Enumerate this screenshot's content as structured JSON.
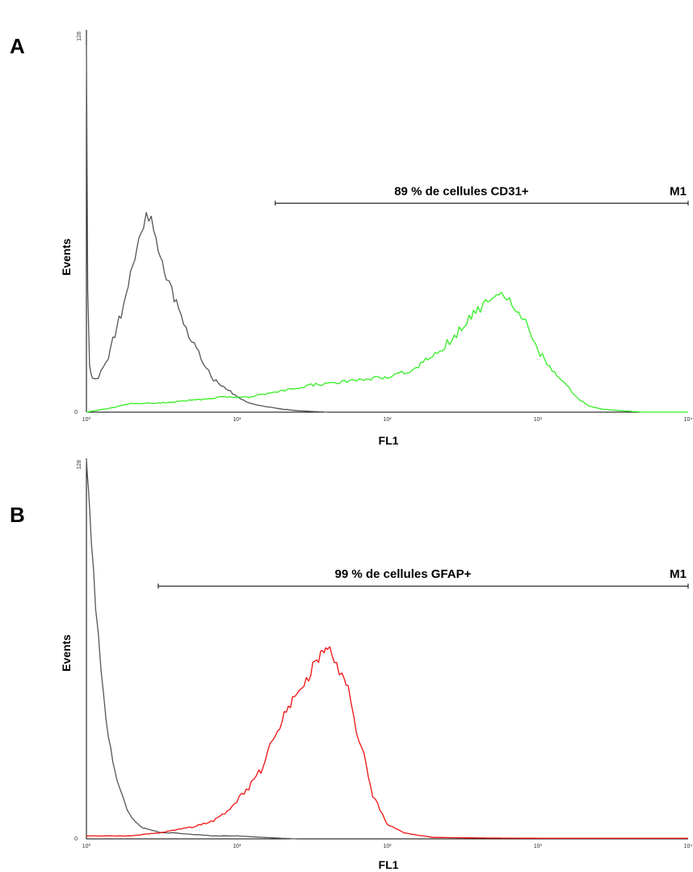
{
  "chart_data": [
    {
      "type": "line",
      "panel": "A",
      "xlabel": "FL1",
      "ylabel": "Events",
      "x_scale": "log",
      "xlim": [
        1,
        10000
      ],
      "ylim": [
        0,
        128
      ],
      "x_ticks": [
        "10⁰",
        "10¹",
        "10²",
        "10³",
        "10⁴"
      ],
      "y_ticks": [
        "0",
        "128"
      ],
      "marker": {
        "label": "M1",
        "text": "89 % de cellules CD31+",
        "range": [
          18,
          10000
        ],
        "y": 70
      },
      "series": [
        {
          "color": "#555555",
          "x": [
            1.0,
            1.02,
            1.05,
            1.1,
            1.2,
            1.35,
            1.5,
            1.7,
            1.9,
            2.1,
            2.3,
            2.5,
            2.7,
            2.9,
            3.1,
            3.4,
            3.7,
            4.1,
            4.6,
            5.2,
            6.0,
            7.0,
            8.5,
            10,
            12,
            15,
            20,
            25,
            30,
            40
          ],
          "y": [
            125,
            40,
            15,
            11,
            12,
            16,
            24,
            33,
            42,
            52,
            60,
            66,
            64,
            58,
            51,
            45,
            40,
            34,
            28,
            22,
            17,
            11,
            8,
            5,
            3,
            2,
            1,
            0.5,
            0.3,
            0
          ]
        },
        {
          "color": "#33ee22",
          "x": [
            1.0,
            1.5,
            2,
            3,
            5,
            8,
            12,
            20,
            30,
            50,
            70,
            100,
            150,
            200,
            250,
            300,
            350,
            400,
            450,
            500,
            550,
            600,
            650,
            700,
            800,
            900,
            1000,
            1200,
            1500,
            1800,
            2200,
            2700,
            3500,
            5000,
            10000
          ],
          "y": [
            0,
            1.5,
            3,
            3,
            4,
            5,
            5,
            7,
            9,
            10,
            11,
            12,
            14,
            19,
            23,
            27,
            31,
            34,
            36,
            38,
            39,
            39,
            38,
            36,
            32,
            26,
            21,
            15,
            10,
            5,
            2,
            1,
            0.5,
            0,
            0
          ]
        }
      ]
    },
    {
      "type": "line",
      "panel": "B",
      "xlabel": "FL1",
      "ylabel": "Events",
      "x_scale": "log",
      "xlim": [
        1,
        10000
      ],
      "ylim": [
        0,
        128
      ],
      "x_ticks": [
        "10⁰",
        "10¹",
        "10²",
        "10³",
        "10⁴"
      ],
      "y_ticks": [
        "0",
        "128"
      ],
      "marker": {
        "label": "M1",
        "text": "99 % de cellules GFAP+",
        "range": [
          3,
          10000
        ],
        "y": 85
      },
      "series": [
        {
          "color": "#555555",
          "x": [
            1.0,
            1.03,
            1.08,
            1.15,
            1.25,
            1.35,
            1.45,
            1.6,
            1.8,
            2.0,
            2.3,
            2.7,
            3.2,
            4,
            5,
            7,
            10,
            15,
            20,
            25
          ],
          "y": [
            128,
            118,
            100,
            78,
            58,
            42,
            30,
            20,
            12,
            7,
            4,
            3,
            2,
            2,
            1.5,
            1,
            1,
            0.5,
            0.2,
            0
          ]
        },
        {
          "color": "#ee1111",
          "x": [
            1.0,
            2,
            3,
            4,
            5,
            6,
            7,
            8,
            9,
            10,
            12,
            14,
            16,
            18,
            20,
            22,
            25,
            28,
            30,
            32,
            34,
            36,
            38,
            40,
            43,
            46,
            50,
            55,
            60,
            70,
            80,
            100,
            130,
            200,
            400,
            1000,
            10000
          ],
          "y": [
            1,
            1,
            2,
            3,
            4,
            5,
            6,
            8,
            10,
            13,
            17,
            22,
            28,
            35,
            41,
            45,
            49,
            53,
            55,
            58,
            60,
            62,
            64,
            64,
            62,
            58,
            56,
            50,
            40,
            28,
            15,
            5,
            2,
            0.5,
            0.3,
            0.2,
            0.2
          ]
        }
      ]
    }
  ]
}
